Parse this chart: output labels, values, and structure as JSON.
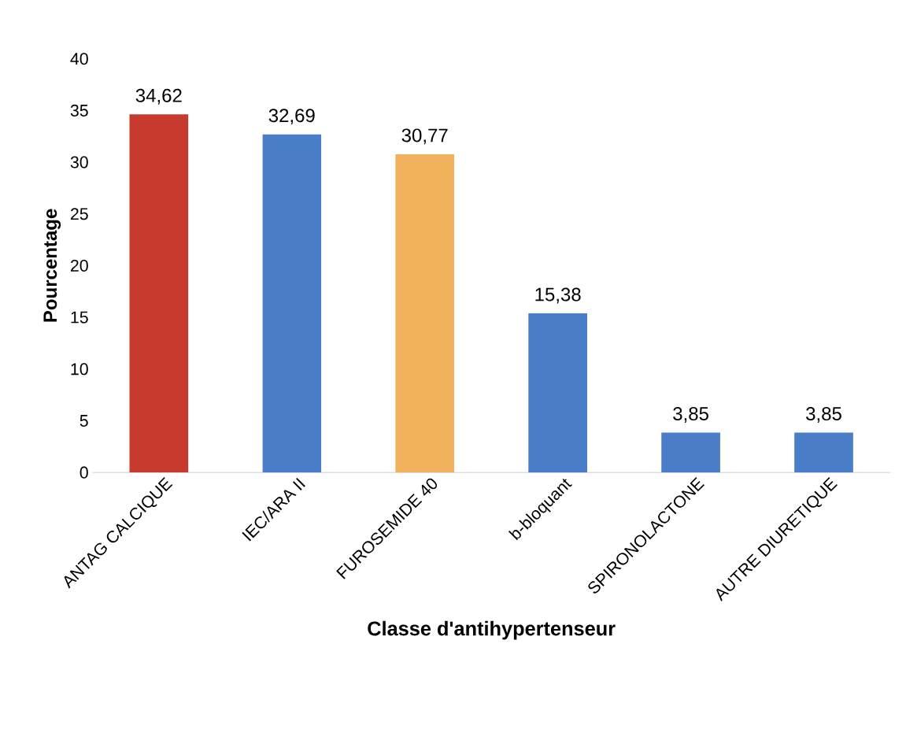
{
  "chart_data": {
    "type": "bar",
    "xlabel": "Classe d'antihypertenseur",
    "ylabel": "Pourcentage",
    "categories": [
      "ANTAG CALCIQUE",
      "IEC/ARA II",
      "FUROSEMIDE 40",
      "b-bloquant",
      "SPIRONOLACTONE",
      "AUTRE DIURETIQUE"
    ],
    "values": [
      34.62,
      32.69,
      30.77,
      15.38,
      3.85,
      3.85
    ],
    "value_labels": [
      "34,62",
      "32,69",
      "30,77",
      "15,38",
      "3,85",
      "3,85"
    ],
    "colors": [
      "#c73b2f",
      "#4a7ec9",
      "#f2b15c",
      "#4a7ec9",
      "#4a7ec9",
      "#4a7ec9"
    ],
    "ylim": [
      0,
      40
    ],
    "yticks": [
      0,
      5,
      10,
      15,
      20,
      25,
      30,
      35,
      40
    ]
  }
}
